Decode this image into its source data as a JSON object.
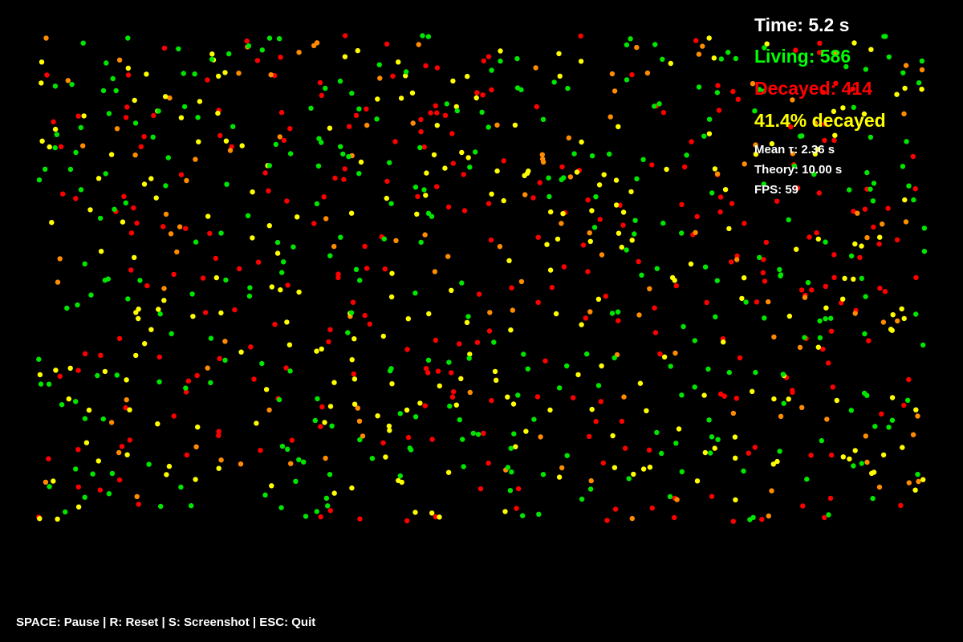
{
  "hud": {
    "time": "Time: 5.2 s",
    "living": "Living: 586",
    "decayed": "Decayed: 414",
    "percent": "41.4% decayed",
    "mean": "Mean τ: 2.36 s",
    "theory": "Theory: 10.00 s",
    "fps": "FPS: 59"
  },
  "controls_hint": "SPACE: Pause | R: Reset | S: Screenshot | ESC: Quit",
  "simulation": {
    "living_count": 586,
    "decayed_count": 414,
    "particle_colors": {
      "living": "#00e600",
      "recent": "#ffff00",
      "aging": "#ff8c00",
      "decayed": "#ff0000"
    }
  },
  "colors": {
    "background": "#000000",
    "time": "#ffffff",
    "living": "#00ff00",
    "decayed": "#ff0000",
    "percent": "#ffff00",
    "info": "#ffffff"
  }
}
